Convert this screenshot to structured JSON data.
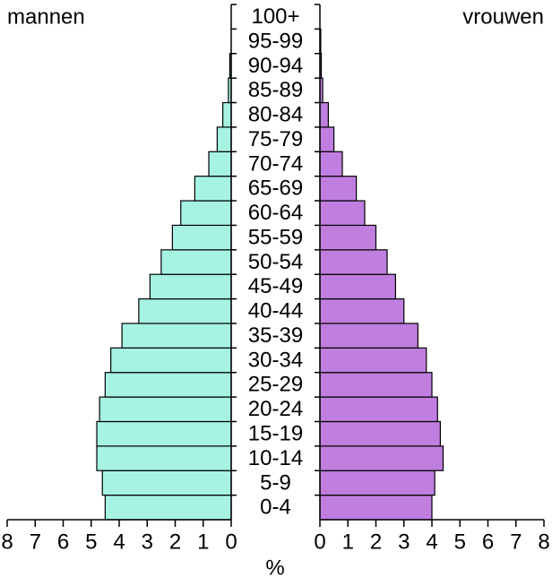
{
  "chart_data": {
    "type": "pyramid",
    "categories": [
      "0-4",
      "5-9",
      "10-14",
      "15-19",
      "20-24",
      "25-29",
      "30-34",
      "35-39",
      "40-44",
      "45-49",
      "50-54",
      "55-59",
      "60-64",
      "65-69",
      "70-74",
      "75-79",
      "80-84",
      "85-89",
      "90-94",
      "95-99",
      "100+"
    ],
    "series": [
      {
        "name": "mannen",
        "color": "#a6f3e4",
        "values": [
          4.5,
          4.6,
          4.8,
          4.8,
          4.7,
          4.5,
          4.3,
          3.9,
          3.3,
          2.9,
          2.5,
          2.1,
          1.8,
          1.3,
          0.8,
          0.5,
          0.3,
          0.1,
          0.05,
          0,
          0
        ]
      },
      {
        "name": "vrouwen",
        "color": "#c07ee0",
        "values": [
          4.0,
          4.1,
          4.4,
          4.3,
          4.2,
          4.0,
          3.8,
          3.5,
          3.0,
          2.7,
          2.4,
          2.0,
          1.6,
          1.3,
          0.8,
          0.5,
          0.3,
          0.1,
          0.05,
          0.03,
          0
        ]
      }
    ],
    "xlabel": "%",
    "xlim": [
      0,
      8
    ],
    "xticks": [
      0,
      1,
      2,
      3,
      4,
      5,
      6,
      7,
      8
    ]
  }
}
